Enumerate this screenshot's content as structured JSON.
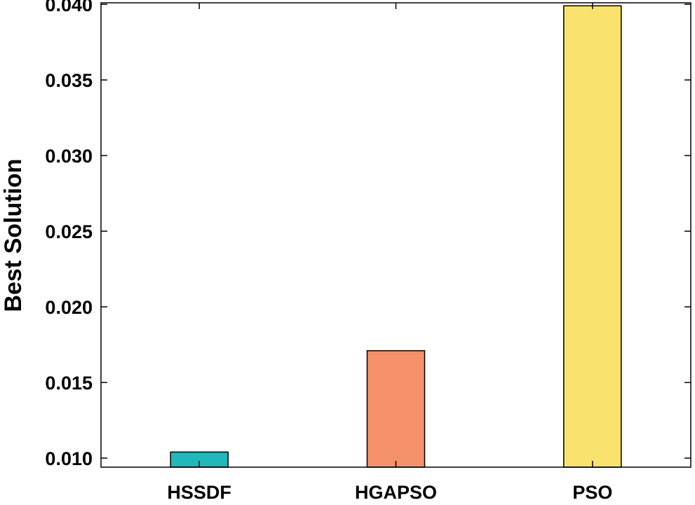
{
  "chart_data": {
    "type": "bar",
    "title": "",
    "xlabel": "",
    "ylabel": "Best Solution",
    "categories": [
      "HSSDF",
      "HGAPSO",
      "PSO"
    ],
    "values": [
      0.0104,
      0.0171,
      0.0399
    ],
    "bar_colors": [
      "#20B8B8",
      "#F4916A",
      "#F9E36E"
    ],
    "ylim": [
      0.0094,
      0.0401
    ],
    "yticks": [
      "0.010",
      "0.015",
      "0.020",
      "0.025",
      "0.030",
      "0.035",
      "0.040"
    ],
    "ytick_values": [
      0.01,
      0.015,
      0.02,
      0.025,
      0.03,
      0.035,
      0.04
    ],
    "grid": false,
    "legend": "none"
  }
}
